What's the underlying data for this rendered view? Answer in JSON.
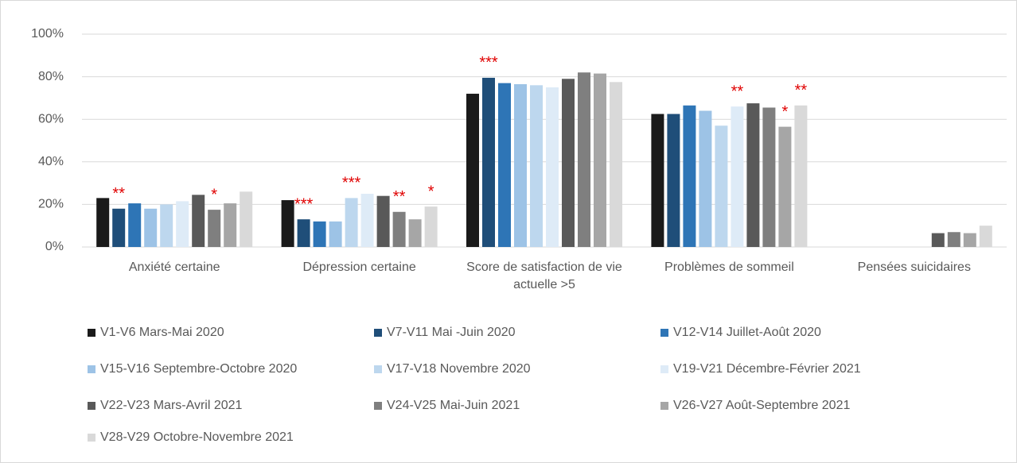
{
  "chart_data": {
    "type": "bar",
    "categories": [
      "Anxiété certaine",
      "Dépression certaine",
      "Score de satisfaction de vie actuelle >5",
      "Problèmes de sommeil",
      "Pensées suicidaires"
    ],
    "ylim": [
      0,
      100
    ],
    "yticks": [
      {
        "value": 0,
        "label": "0%"
      },
      {
        "value": 20,
        "label": "20%"
      },
      {
        "value": 40,
        "label": "40%"
      },
      {
        "value": 60,
        "label": "60%"
      },
      {
        "value": 80,
        "label": "80%"
      },
      {
        "value": 100,
        "label": "100%"
      }
    ],
    "grid": true,
    "legend": "bottom",
    "series": [
      {
        "name": "V1-V6 Mars-Mai 2020",
        "color": "#1a1a1a",
        "values": [
          23,
          22,
          72,
          62.5,
          null
        ],
        "significance": [
          null,
          null,
          null,
          null,
          null
        ]
      },
      {
        "name": "V7-V11 Mai -Juin 2020",
        "color": "#1f4e79",
        "values": [
          18,
          13,
          79.5,
          62.5,
          null
        ],
        "significance": [
          "**",
          "***",
          "***",
          null,
          null
        ]
      },
      {
        "name": "V12-V14 Juillet-Août 2020",
        "color": "#2e75b6",
        "values": [
          20.5,
          12,
          77,
          66.5,
          null
        ],
        "significance": [
          null,
          null,
          null,
          null,
          null
        ]
      },
      {
        "name": "V15-V16 Septembre-Octobre 2020",
        "color": "#9dc3e6",
        "values": [
          18,
          12,
          76.5,
          64,
          null
        ],
        "significance": [
          null,
          null,
          null,
          null,
          null
        ]
      },
      {
        "name": "V17-V18 Novembre 2020",
        "color": "#bdd7ee",
        "values": [
          20,
          23,
          76,
          57,
          null
        ],
        "significance": [
          null,
          "***",
          null,
          null,
          null
        ]
      },
      {
        "name": "V19-V21 Décembre-Février 2021",
        "color": "#deebf7",
        "values": [
          21.5,
          25,
          75,
          66,
          null
        ],
        "significance": [
          null,
          null,
          null,
          "**",
          null
        ]
      },
      {
        "name": "V22-V23 Mars-Avril 2021",
        "color": "#595959",
        "values": [
          24.5,
          24,
          79,
          67.5,
          6.5
        ],
        "significance": [
          null,
          null,
          null,
          null,
          null
        ]
      },
      {
        "name": "V24-V25 Mai-Juin 2021",
        "color": "#7f7f7f",
        "values": [
          17.5,
          16.5,
          82,
          65.5,
          7
        ],
        "significance": [
          "*",
          "**",
          null,
          null,
          null
        ]
      },
      {
        "name": "V26-V27 Août-Septembre 2021",
        "color": "#a6a6a6",
        "values": [
          20.5,
          13,
          81.5,
          56.5,
          6.5
        ],
        "significance": [
          null,
          null,
          null,
          "*",
          null
        ]
      },
      {
        "name": "V28-V29 Octobre-Novembre 2021",
        "color": "#d9d9d9",
        "values": [
          26,
          19,
          77.5,
          66.5,
          10
        ],
        "significance": [
          null,
          "*",
          null,
          "**",
          null
        ]
      }
    ]
  }
}
